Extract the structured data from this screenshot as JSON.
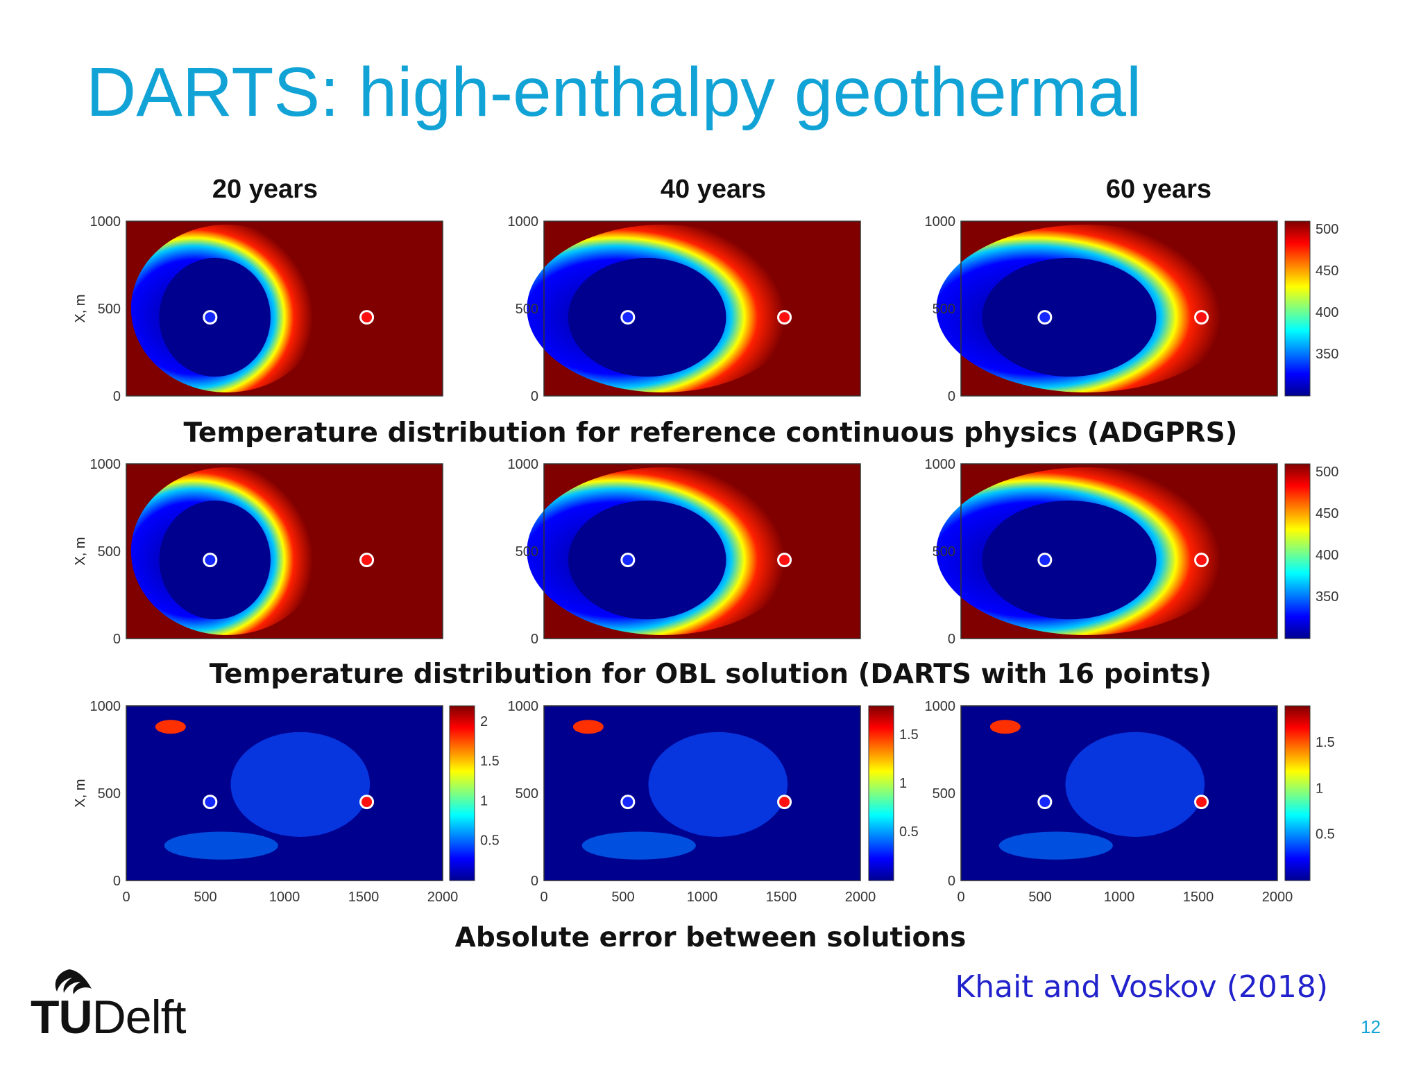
{
  "slide": {
    "title": "DARTS: high-enthalpy geothermal",
    "page_number": "12",
    "credit": "Khait and Voskov (2018)",
    "logo": {
      "tu": "TU",
      "delft": "Delft"
    }
  },
  "columns": [
    "20 years",
    "40 years",
    "60 years"
  ],
  "captions": {
    "row1": "Temperature distribution for reference continuous physics (ADGPRS)",
    "row2": "Temperature distribution for OBL solution (DARTS with 16 points)",
    "row3": "Absolute error between solutions"
  },
  "colors": {
    "title": "#12a3d6",
    "credit": "#2222cc",
    "injector_well": "#1428ff",
    "producer_well": "#ff1010",
    "colormap": [
      "#00008f",
      "#0000ff",
      "#0080ff",
      "#00ffff",
      "#80ff80",
      "#ffff00",
      "#ff8000",
      "#ff0000",
      "#800000"
    ]
  },
  "chart_data": [
    {
      "type": "heatmap",
      "row": 1,
      "description_label": "Temperature distribution for reference continuous physics (ADGPRS)",
      "panels": [
        "20 years",
        "40 years",
        "60 years"
      ],
      "ylabel": "X, m",
      "xlim": [
        0,
        2000
      ],
      "ylim": [
        0,
        1000
      ],
      "y_ticks": [
        "0",
        "500",
        "1000"
      ],
      "colorbar": {
        "ticks": [
          "350",
          "400",
          "450",
          "500"
        ],
        "range": [
          300,
          510
        ]
      },
      "wells": [
        {
          "type": "injector",
          "x": 530,
          "y": 450
        },
        {
          "type": "producer",
          "x": 1520,
          "y": 450
        }
      ]
    },
    {
      "type": "heatmap",
      "row": 2,
      "description_label": "Temperature distribution for OBL solution (DARTS with 16 points)",
      "panels": [
        "20 years",
        "40 years",
        "60 years"
      ],
      "ylabel": "X, m",
      "xlim": [
        0,
        2000
      ],
      "ylim": [
        0,
        1000
      ],
      "y_ticks": [
        "0",
        "500",
        "1000"
      ],
      "colorbar": {
        "ticks": [
          "350",
          "400",
          "450",
          "500"
        ],
        "range": [
          300,
          510
        ]
      },
      "wells": [
        {
          "type": "injector",
          "x": 530,
          "y": 450
        },
        {
          "type": "producer",
          "x": 1520,
          "y": 450
        }
      ]
    },
    {
      "type": "heatmap",
      "row": 3,
      "description_label": "Absolute error between solutions",
      "panels": [
        "20 years",
        "40 years",
        "60 years"
      ],
      "ylabel": "X, m",
      "xlim": [
        0,
        2000
      ],
      "ylim": [
        0,
        1000
      ],
      "x_ticks": [
        "0",
        "500",
        "1000",
        "1500",
        "2000"
      ],
      "y_ticks": [
        "0",
        "500",
        "1000"
      ],
      "colorbars": [
        {
          "ticks": [
            "0.5",
            "1",
            "1.5",
            "2"
          ],
          "range": [
            0,
            2.2
          ]
        },
        {
          "ticks": [
            "0.5",
            "1",
            "1.5"
          ],
          "range": [
            0,
            1.8
          ]
        },
        {
          "ticks": [
            "0.5",
            "1",
            "1.5"
          ],
          "range": [
            0,
            1.9
          ]
        }
      ],
      "wells": [
        {
          "type": "injector",
          "x": 530,
          "y": 450
        },
        {
          "type": "producer",
          "x": 1520,
          "y": 450
        }
      ]
    }
  ]
}
